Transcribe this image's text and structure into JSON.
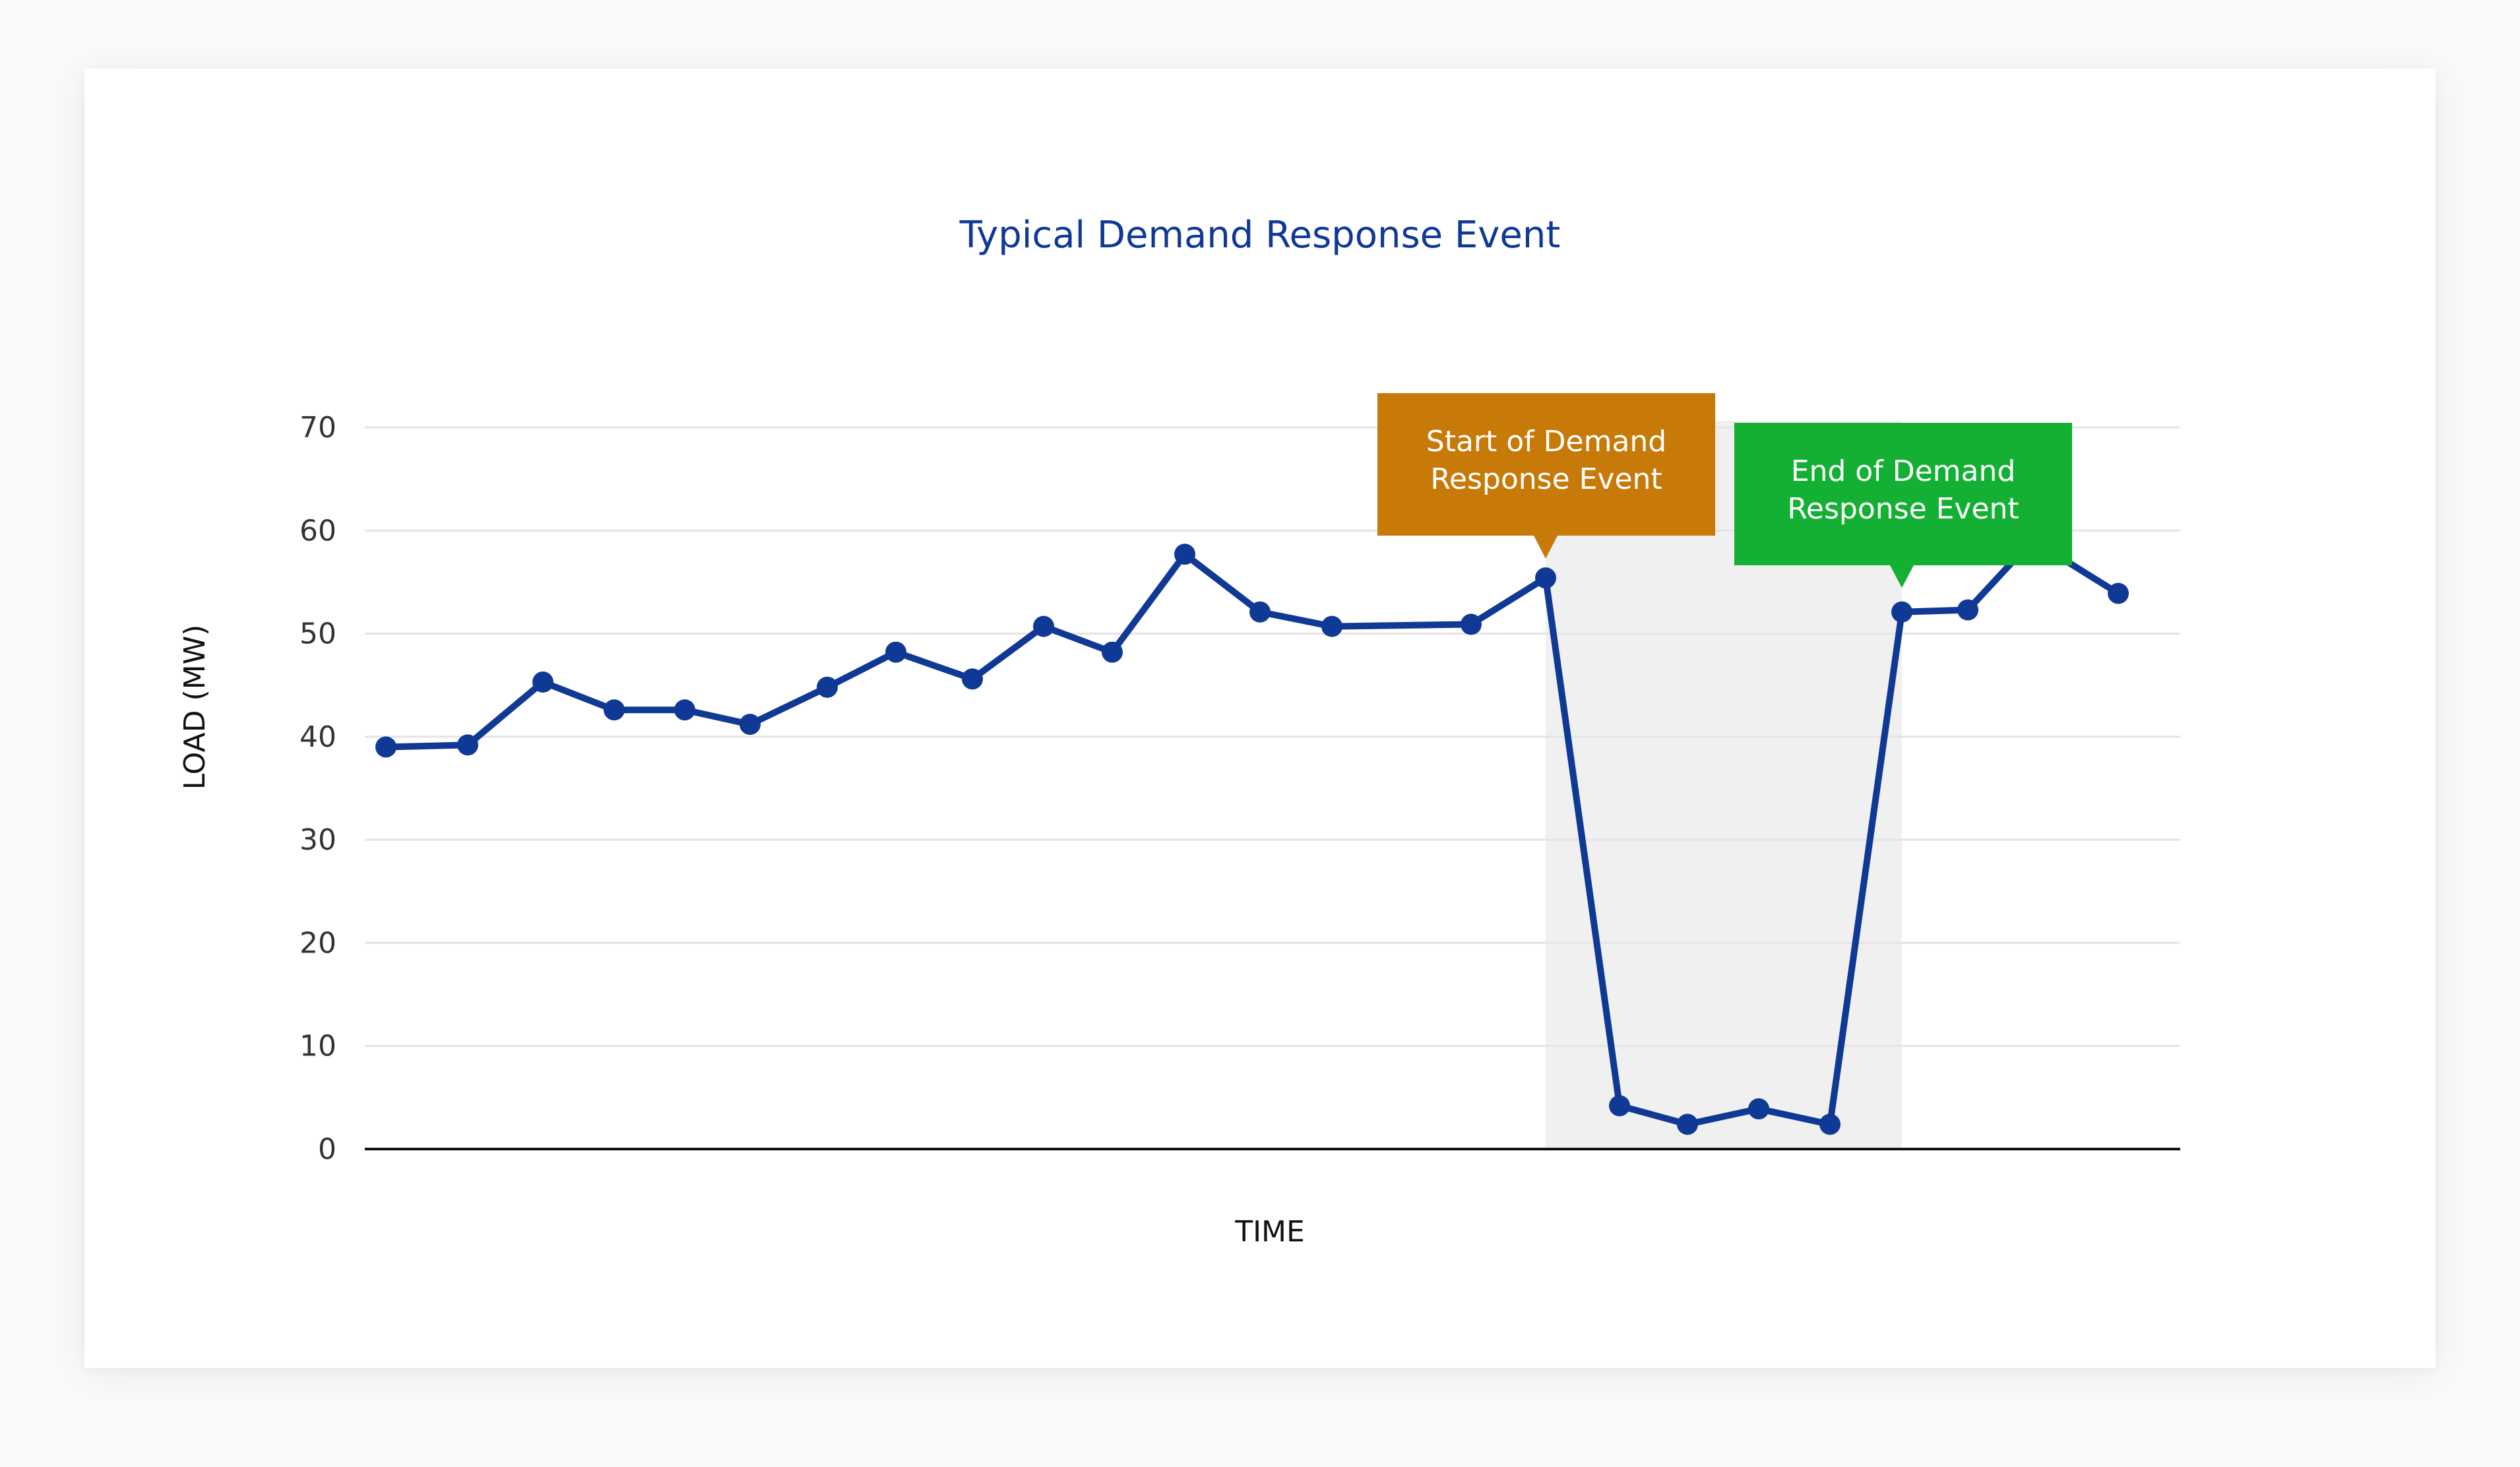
{
  "chart_data": {
    "type": "line",
    "title": "Typical Demand Response Event",
    "xlabel": "TIME",
    "ylabel": "LOAD (MW)",
    "ylim": [
      0,
      70
    ],
    "yticks": [
      0,
      10,
      20,
      30,
      40,
      50,
      60,
      70
    ],
    "grid": true,
    "legend": "none",
    "x": [
      1,
      2,
      3,
      4,
      5,
      6,
      7,
      8,
      9,
      10,
      11,
      12,
      13,
      14,
      15,
      16,
      17,
      18,
      19,
      20,
      21,
      22,
      23,
      24,
      25
    ],
    "series": [
      {
        "values": [
          39,
          39.2,
          45.3,
          42.6,
          42.6,
          41.2,
          44.8,
          48.2,
          45.6,
          50.7,
          48.2,
          57.7,
          52.1,
          50.7,
          50.9,
          55.4,
          4.2,
          2.4,
          3.9,
          2.4,
          52.1,
          52.3,
          58.5,
          58.6,
          53.9
        ],
        "color": "#0f3995"
      }
    ],
    "annotations": [
      {
        "text": [
          "Start of Demand",
          "Response Event"
        ],
        "color": "#c87a08"
      },
      {
        "text": [
          "End of Demand",
          "Response Event"
        ],
        "color": "#13b033"
      }
    ],
    "shaded_region_color": "#f0f0f0"
  }
}
